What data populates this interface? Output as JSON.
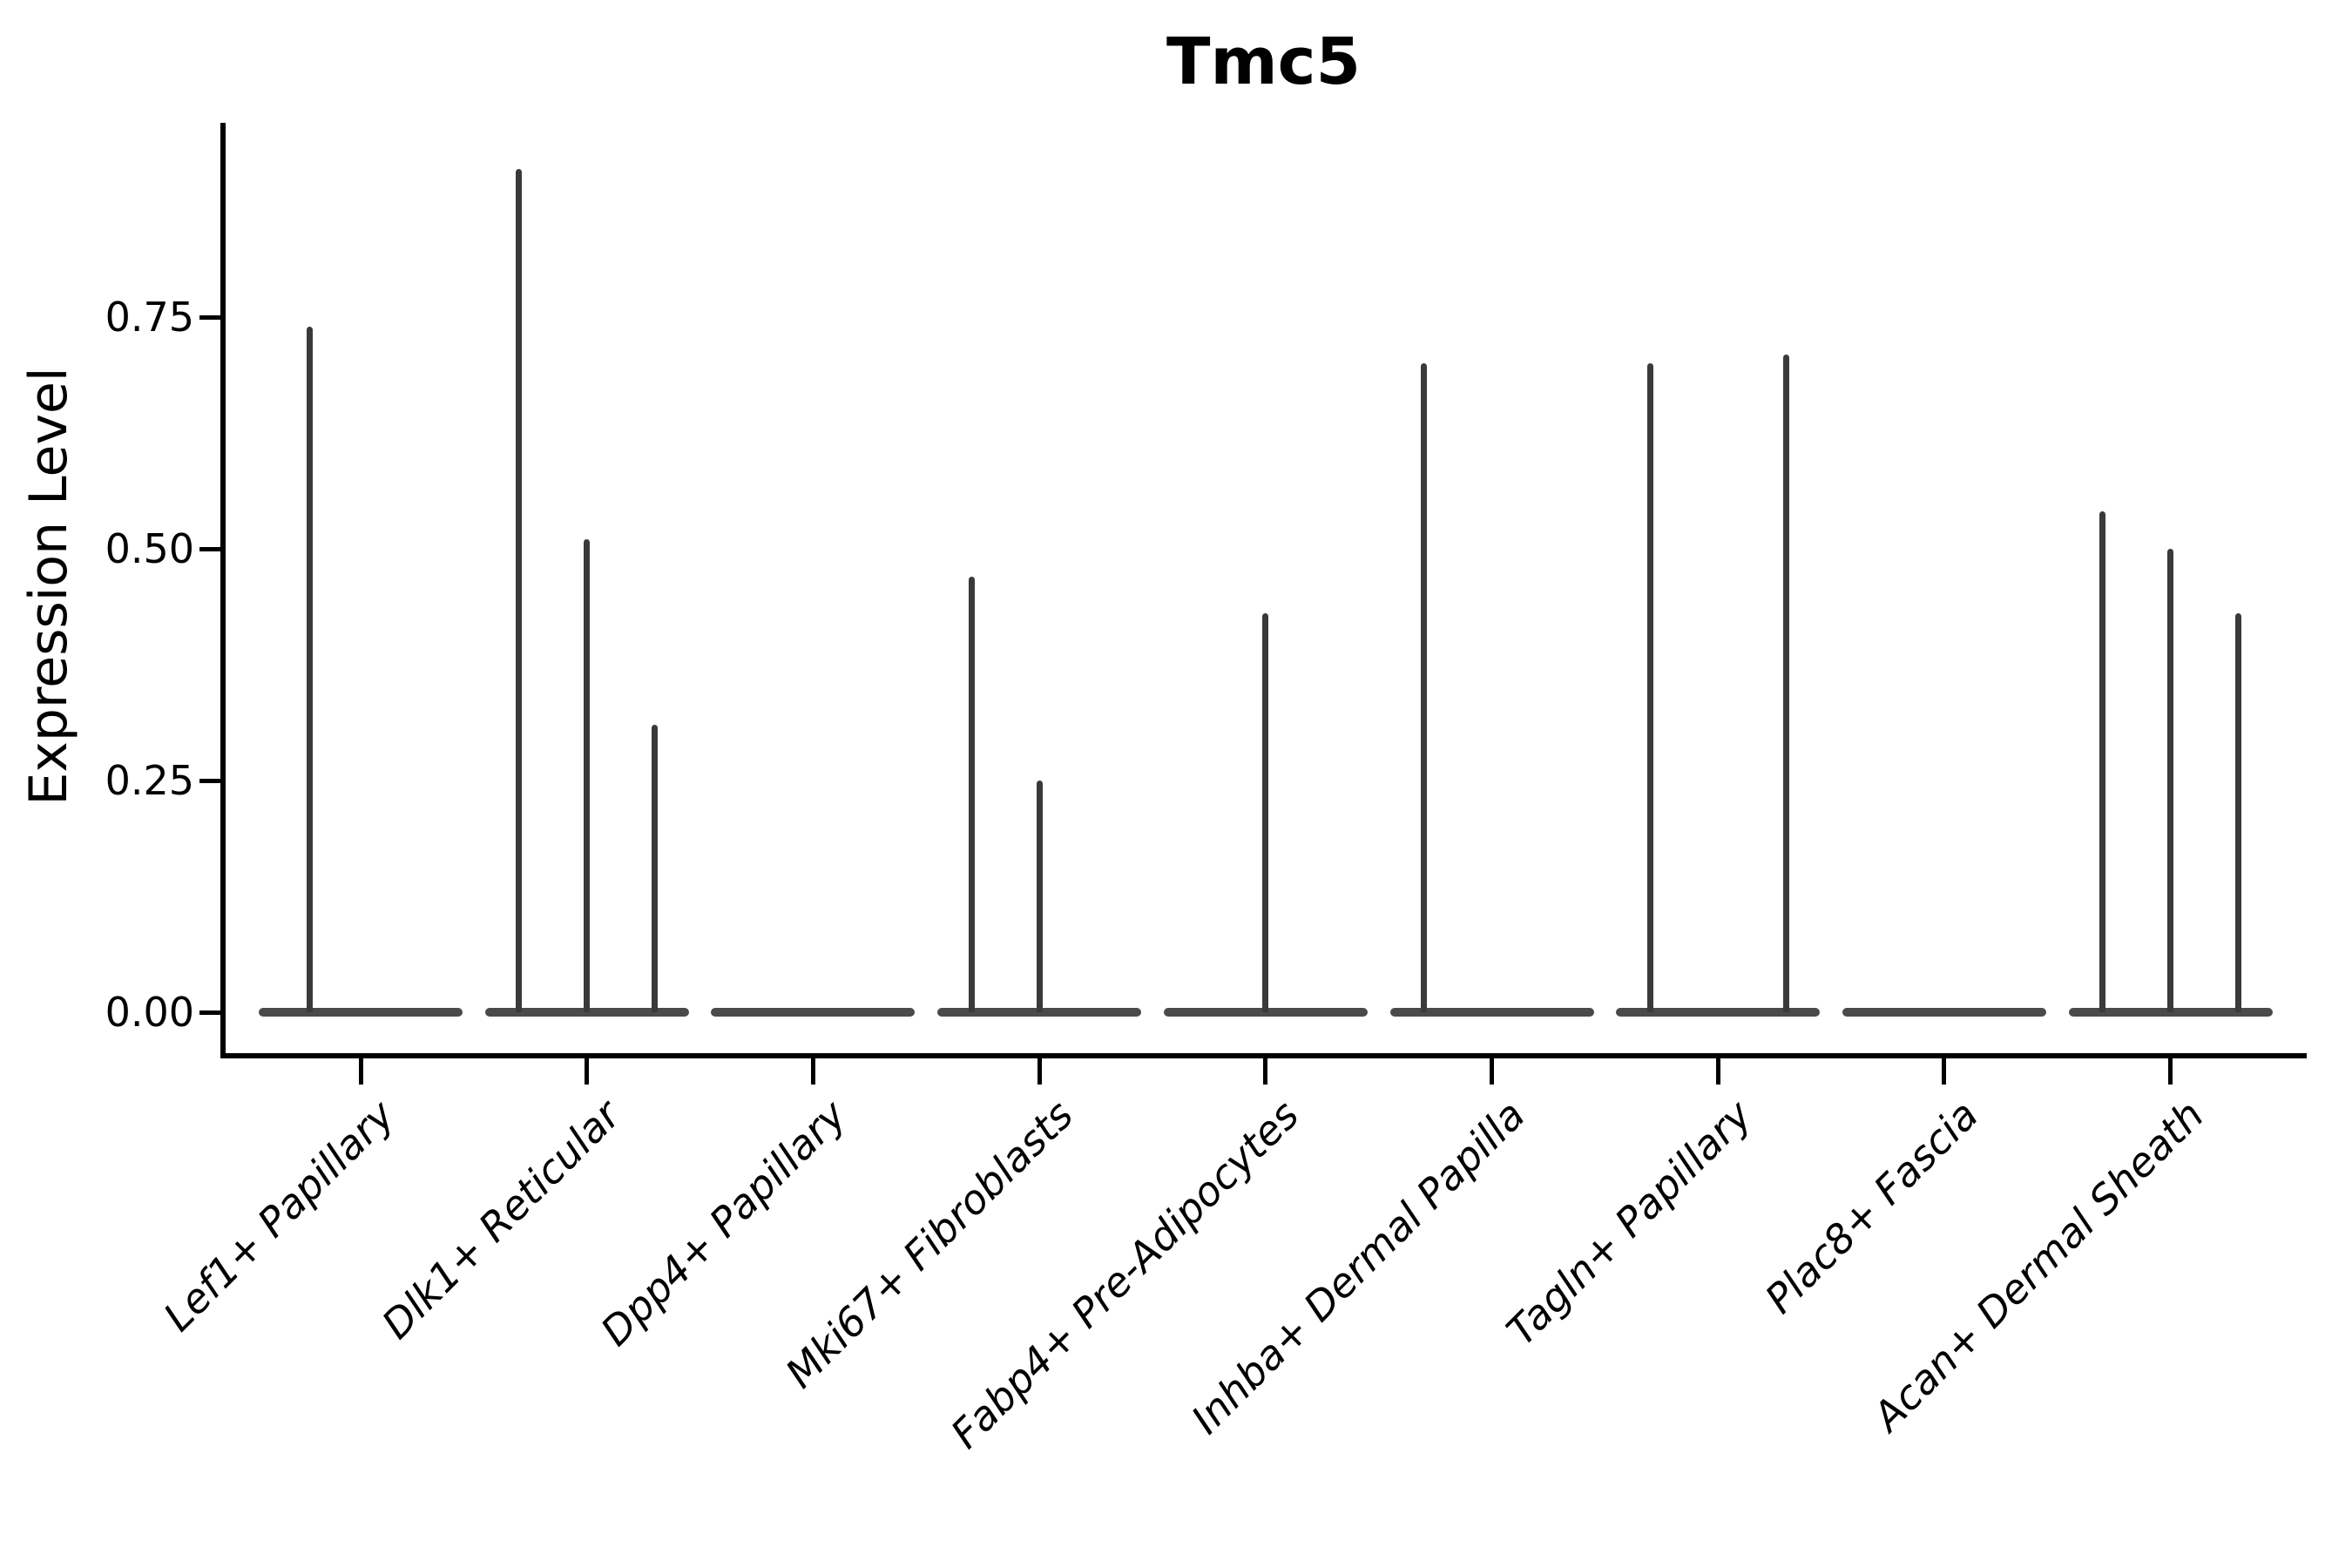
{
  "title": "Tmc5",
  "ylabel": "Expression Level",
  "colors": {
    "spike": "#3a3a3a",
    "violin_body": "#4a4a4a",
    "axis": "#000000",
    "text": "#000000",
    "background": "#ffffff"
  },
  "chart_data": {
    "type": "violin",
    "title": "Tmc5",
    "xlabel": "",
    "ylabel": "Expression Level",
    "ylim": [
      -0.04,
      0.96
    ],
    "yticks": [
      0,
      0.25,
      0.5,
      0.75
    ],
    "ytick_labels": [
      "0.00",
      "0.25",
      "0.50",
      "0.75"
    ],
    "grid": false,
    "legend": "none",
    "x_label_rotation_deg": 45,
    "categories": [
      "Lef1+ Papillary",
      "Dlk1+ Reticular",
      "Dpp4+ Papillary",
      "Mki67+ Fibroblasts",
      "Fabp4+ Pre-Adipocytes",
      "Inhba+ Dermal Papilla",
      "Tagln+ Papillary",
      "Plac8+ Fascia",
      "Acan+ Dermal Sheath"
    ],
    "violins": [
      {
        "category": "Lef1+ Papillary",
        "sub_violins": 2,
        "baseline_value": 0,
        "spikes": [
          {
            "slot": 1,
            "max_expression": 0.74
          }
        ]
      },
      {
        "category": "Dlk1+ Reticular",
        "sub_violins": 3,
        "baseline_value": 0,
        "spikes": [
          {
            "slot": 1,
            "max_expression": 0.91
          },
          {
            "slot": 2,
            "max_expression": 0.51
          },
          {
            "slot": 3,
            "max_expression": 0.31
          }
        ]
      },
      {
        "category": "Dpp4+ Papillary",
        "sub_violins": 3,
        "baseline_value": 0,
        "spikes": []
      },
      {
        "category": "Mki67+ Fibroblasts",
        "sub_violins": 3,
        "baseline_value": 0,
        "spikes": [
          {
            "slot": 1,
            "max_expression": 0.47
          },
          {
            "slot": 2,
            "max_expression": 0.25
          }
        ]
      },
      {
        "category": "Fabp4+ Pre-Adipocytes",
        "sub_violins": 3,
        "baseline_value": 0,
        "spikes": [
          {
            "slot": 2,
            "max_expression": 0.43
          }
        ]
      },
      {
        "category": "Inhba+ Dermal Papilla",
        "sub_violins": 3,
        "baseline_value": 0,
        "spikes": [
          {
            "slot": 1,
            "max_expression": 0.7
          }
        ]
      },
      {
        "category": "Tagln+ Papillary",
        "sub_violins": 3,
        "baseline_value": 0,
        "spikes": [
          {
            "slot": 1,
            "max_expression": 0.7
          },
          {
            "slot": 3,
            "max_expression": 0.71
          }
        ]
      },
      {
        "category": "Plac8+ Fascia",
        "sub_violins": 3,
        "baseline_value": 0,
        "spikes": []
      },
      {
        "category": "Acan+ Dermal Sheath",
        "sub_violins": 3,
        "baseline_value": 0,
        "spikes": [
          {
            "slot": 1,
            "max_expression": 0.54
          },
          {
            "slot": 2,
            "max_expression": 0.5
          },
          {
            "slot": 3,
            "max_expression": 0.43
          }
        ]
      }
    ]
  }
}
